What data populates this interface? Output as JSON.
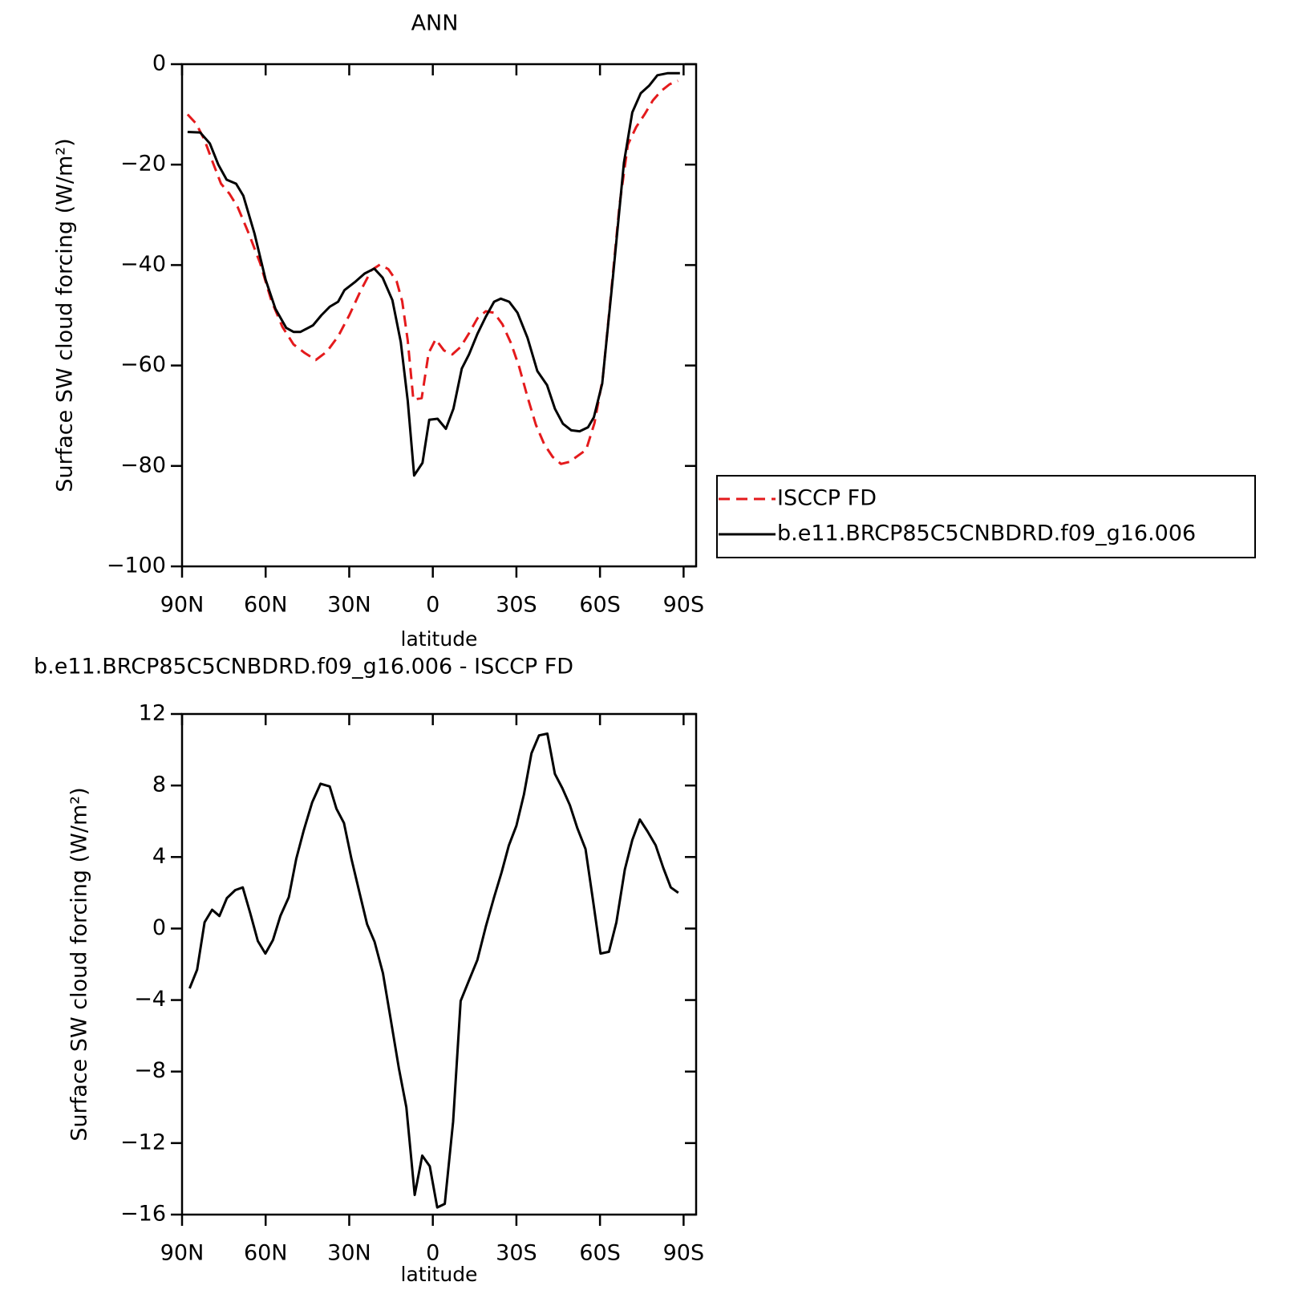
{
  "chart_data": [
    {
      "type": "line",
      "title": "ANN",
      "xlabel": "latitude",
      "ylabel": "Surface SW cloud forcing (W/m²)",
      "xlim": [
        90,
        -94.5
      ],
      "ylim": [
        -100,
        0
      ],
      "xticks": [
        {
          "value": 90,
          "label": "90N"
        },
        {
          "value": 60,
          "label": "60N"
        },
        {
          "value": 30,
          "label": "30N"
        },
        0,
        {
          "value": -30,
          "label": "30S"
        },
        {
          "value": -60,
          "label": "60S"
        },
        {
          "value": -90,
          "label": "90S"
        }
      ],
      "yticks": [
        0,
        -20,
        -40,
        -60,
        -80,
        -100
      ],
      "legend": "right",
      "series": [
        {
          "name": "ISCCP FD",
          "color": "#e41a1c",
          "dash": "dashed",
          "x": [
            88,
            85,
            82,
            79,
            76,
            73,
            70,
            66,
            62,
            58,
            54,
            50,
            46,
            42,
            38,
            34,
            30,
            26,
            22,
            19,
            16,
            13,
            11,
            9,
            7,
            4,
            1.5,
            -1,
            -4,
            -7,
            -10,
            -13,
            -16,
            -19,
            -22,
            -25,
            -28,
            -31,
            -34,
            -37,
            -40,
            -43,
            -46,
            -49,
            -52,
            -55,
            -58,
            -61,
            -64,
            -67,
            -70,
            -73,
            -76,
            -79,
            -82,
            -85,
            -88
          ],
          "values": [
            -10,
            -11.8,
            -15,
            -19.5,
            -23.8,
            -25.8,
            -28.5,
            -33.8,
            -39.6,
            -47,
            -52.3,
            -55.8,
            -57.5,
            -58.9,
            -57.2,
            -54.2,
            -50,
            -45.2,
            -41,
            -39.9,
            -40.8,
            -43.2,
            -47.2,
            -55,
            -66.8,
            -66.5,
            -57.5,
            -54.8,
            -57,
            -57.8,
            -56.3,
            -53.6,
            -50.6,
            -49.2,
            -49.5,
            -51.8,
            -55.5,
            -60.3,
            -66.3,
            -71.8,
            -75.7,
            -78.2,
            -79.6,
            -79.2,
            -78,
            -76.8,
            -71.5,
            -62.5,
            -45.5,
            -28,
            -16,
            -12.5,
            -10,
            -7.2,
            -5.3,
            -4,
            -3.3
          ]
        },
        {
          "name": "b.e11.BRCP85C5CNBDRD.f09_g16.006",
          "color": "#000000",
          "dash": "solid",
          "x": [
            88,
            83.5,
            80,
            77,
            74,
            70.6,
            68,
            64,
            60,
            56.5,
            52.6,
            50,
            47.5,
            43,
            40,
            37,
            34,
            31.7,
            28,
            24.5,
            21,
            18,
            14.5,
            11.5,
            9,
            6.7,
            3.7,
            1.3,
            -1.7,
            -4.7,
            -7.4,
            -10.4,
            -13,
            -16,
            -19,
            -22,
            -24.4,
            -27.4,
            -30.4,
            -34,
            -37.5,
            -41,
            -43.8,
            -46.7,
            -49.7,
            -52.7,
            -55.7,
            -57.8,
            -60.8,
            -64.7,
            -68.6,
            -71.6,
            -74.6,
            -77.6,
            -80.6,
            -84.2,
            -88.7
          ],
          "values": [
            -13.5,
            -13.6,
            -15.8,
            -20,
            -23,
            -23.8,
            -26.2,
            -33.7,
            -42.9,
            -48.7,
            -52.5,
            -53.3,
            -53.3,
            -52,
            -50,
            -48.3,
            -47.3,
            -45,
            -43.4,
            -41.7,
            -40.7,
            -42.5,
            -47,
            -55.3,
            -67,
            -81.9,
            -79.4,
            -70.8,
            -70.6,
            -72.6,
            -68.6,
            -60.6,
            -57.8,
            -53.7,
            -50.3,
            -47.3,
            -46.7,
            -47.3,
            -49.5,
            -54.5,
            -61.1,
            -63.9,
            -68.6,
            -71.6,
            -72.9,
            -73.1,
            -72.3,
            -70.3,
            -63.6,
            -42,
            -19.6,
            -9.6,
            -5.8,
            -4.3,
            -2.2,
            -1.8,
            -1.8
          ]
        }
      ]
    },
    {
      "type": "line",
      "title": "b.e11.BRCP85C5CNBDRD.f09_g16.006 - ISCCP FD",
      "xlabel": "latitude",
      "ylabel": "Surface SW cloud forcing (W/m²)",
      "xlim": [
        90,
        -94.5
      ],
      "ylim": [
        -16,
        12
      ],
      "xticks": [
        {
          "value": 90,
          "label": "90N"
        },
        {
          "value": 60,
          "label": "60N"
        },
        {
          "value": 30,
          "label": "30N"
        },
        0,
        {
          "value": -30,
          "label": "30S"
        },
        {
          "value": -60,
          "label": "60S"
        },
        {
          "value": -90,
          "label": "90S"
        }
      ],
      "yticks": [
        12,
        8,
        4,
        0,
        -4,
        -8,
        -12,
        -16
      ],
      "color": "#000000",
      "x": [
        87.3,
        84.6,
        81.9,
        79.2,
        76.6,
        73.9,
        70.9,
        68.2,
        65.5,
        62.8,
        60.1,
        57.4,
        54.7,
        51.7,
        49,
        46.3,
        43.3,
        40.3,
        37,
        34.6,
        31.9,
        29.2,
        26.3,
        23.6,
        20.9,
        17.9,
        15.2,
        12.2,
        9.5,
        6.5,
        3.8,
        1.1,
        -1.6,
        -4.3,
        -7.3,
        -10,
        -13,
        -16,
        -19,
        -22,
        -24.7,
        -27.3,
        -30,
        -32.7,
        -35.4,
        -38.1,
        -41.1,
        -43.8,
        -46.5,
        -49.2,
        -51.9,
        -54.8,
        -57.5,
        -60.2,
        -63.2,
        -65.9,
        -68.9,
        -71.6,
        -74.3,
        -77,
        -80,
        -82.7,
        -85.4,
        -88.1
      ],
      "values": [
        -3.35,
        -2.3,
        0.35,
        1.05,
        0.7,
        1.7,
        2.15,
        2.3,
        0.85,
        -0.7,
        -1.4,
        -0.65,
        0.7,
        1.75,
        3.9,
        5.5,
        7.05,
        8.1,
        7.95,
        6.7,
        5.9,
        3.9,
        2,
        0.25,
        -0.75,
        -2.5,
        -5,
        -7.8,
        -10,
        -14.9,
        -12.7,
        -13.3,
        -15.6,
        -15.4,
        -10.8,
        -4.05,
        -2.9,
        -1.75,
        0.1,
        1.75,
        3.15,
        4.65,
        5.75,
        7.5,
        9.8,
        10.8,
        10.9,
        8.65,
        7.85,
        6.9,
        5.6,
        4.45,
        1.55,
        -1.4,
        -1.3,
        0.35,
        3.3,
        4.95,
        6.1,
        5.45,
        4.65,
        3.4,
        2.3,
        2
      ]
    }
  ]
}
